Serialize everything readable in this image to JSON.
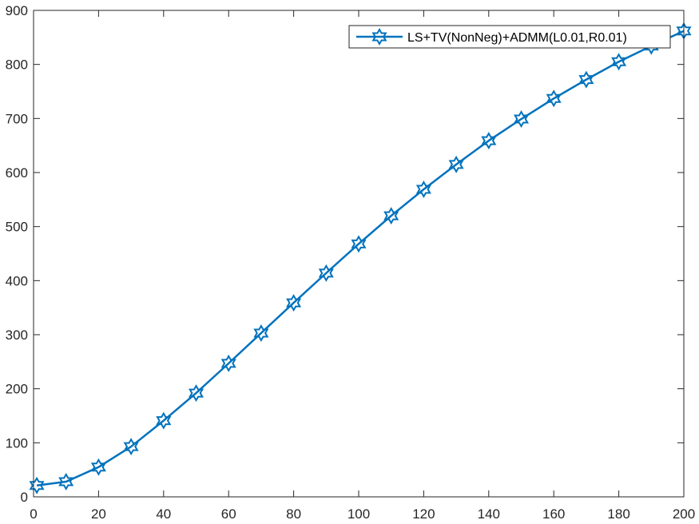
{
  "chart_data": {
    "type": "line",
    "title": "",
    "xlabel": "",
    "ylabel": "",
    "xlim": [
      0,
      200
    ],
    "ylim": [
      0,
      900
    ],
    "xticks": [
      0,
      20,
      40,
      60,
      80,
      100,
      120,
      140,
      160,
      180,
      200
    ],
    "yticks": [
      0,
      100,
      200,
      300,
      400,
      500,
      600,
      700,
      800,
      900
    ],
    "grid": false,
    "legend_position": "top-right",
    "series": [
      {
        "name": "LS+TV(NonNeg)+ADMM(L0.01,R0.01)",
        "color": "#0072BD",
        "marker": "hexagram",
        "x": [
          1,
          10,
          20,
          30,
          40,
          50,
          60,
          70,
          80,
          90,
          100,
          110,
          120,
          130,
          140,
          150,
          160,
          170,
          180,
          190,
          200
        ],
        "y": [
          21,
          28,
          55,
          93,
          141,
          192,
          247,
          303,
          359,
          414,
          468,
          520,
          569,
          615,
          659,
          699,
          737,
          772,
          805,
          834,
          862
        ]
      }
    ]
  }
}
